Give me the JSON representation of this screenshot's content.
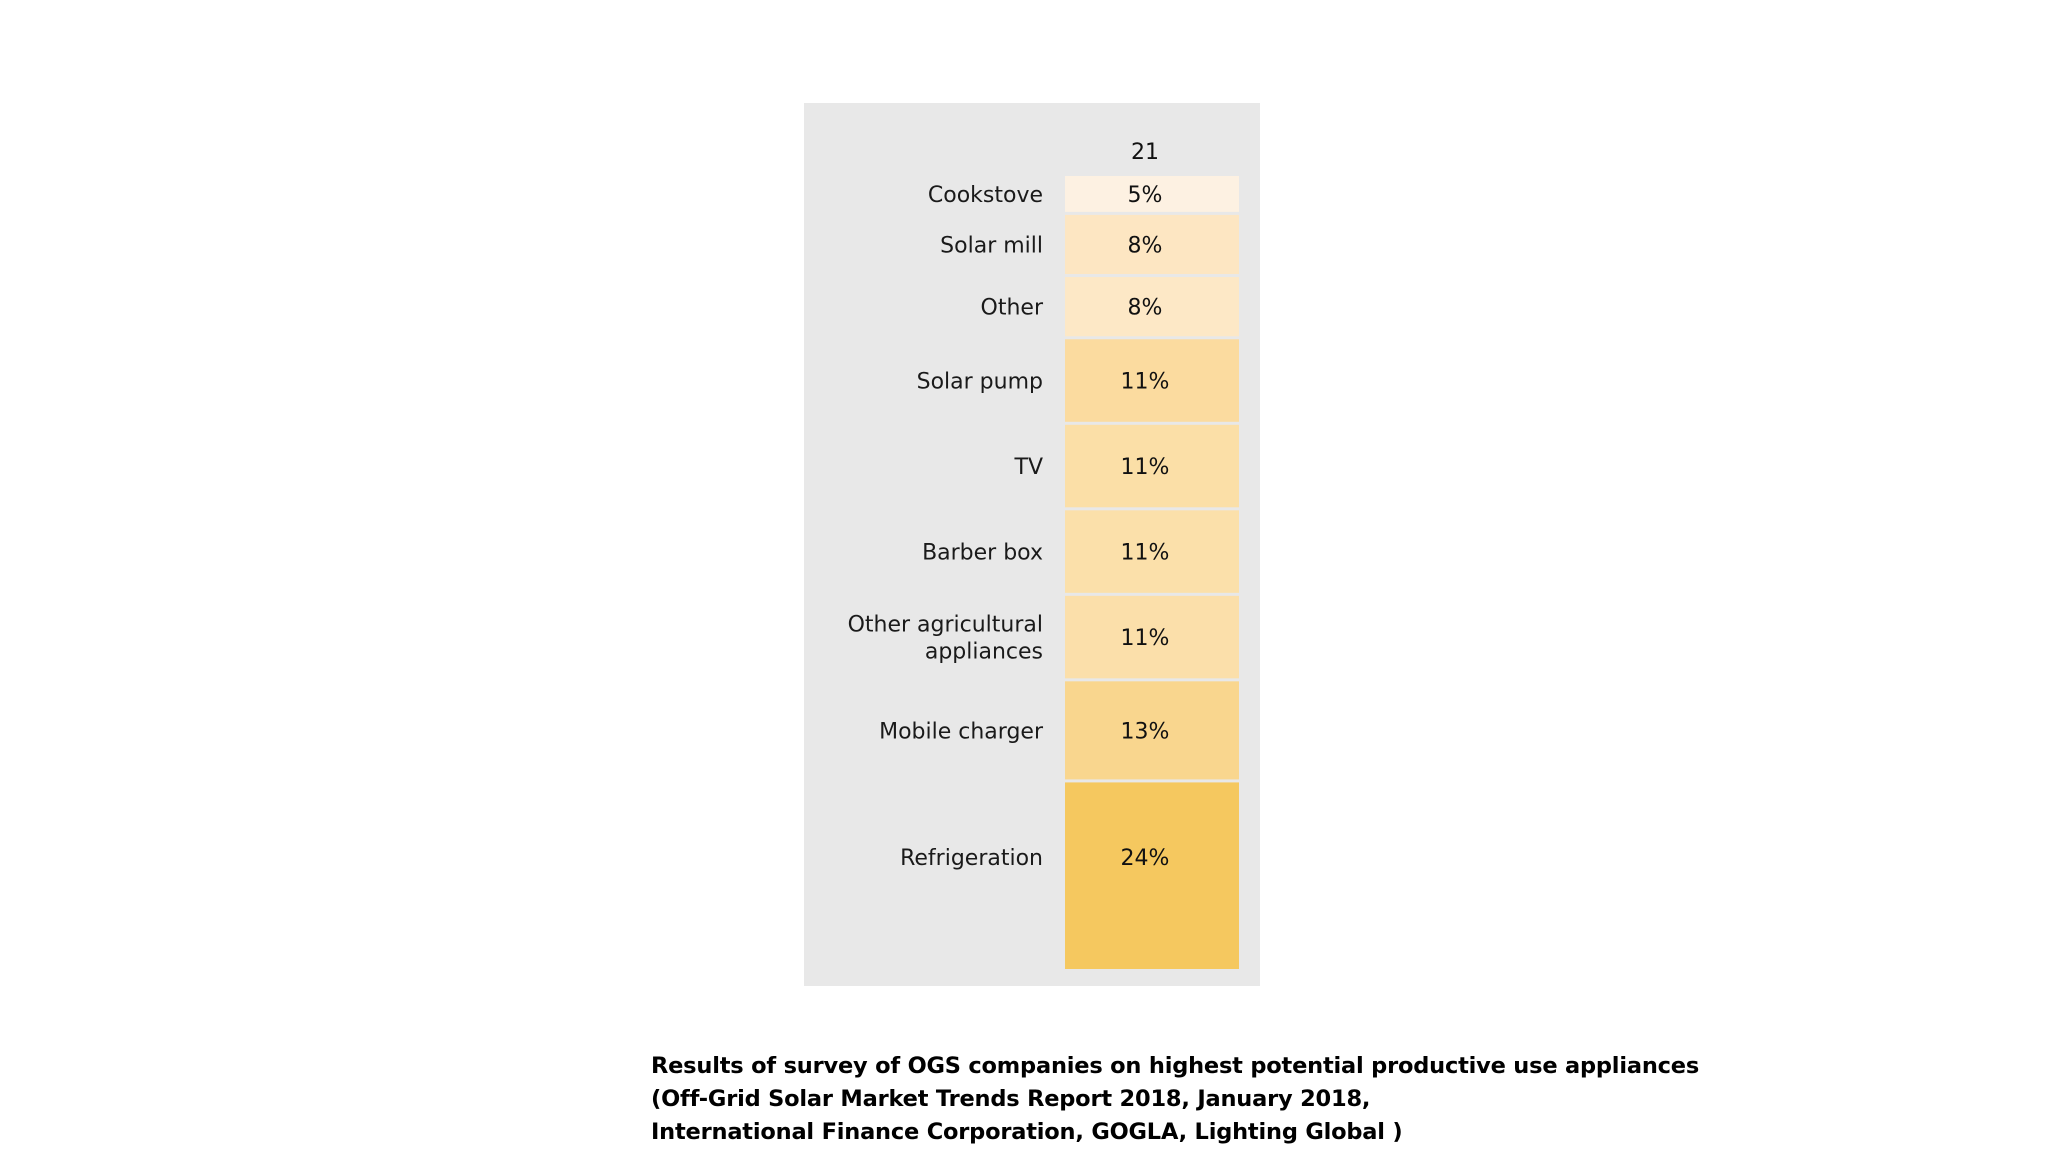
{
  "chart_data": {
    "type": "bar",
    "layout": "stacked-column",
    "total_label": "21",
    "categories": [
      "Cookstove",
      "Solar mill",
      "Other",
      "Solar pump",
      "TV",
      "Barber box",
      "Other agricultural appliances",
      "Mobile charger",
      "Refrigeration"
    ],
    "category_lines": [
      [
        "Cookstove"
      ],
      [
        "Solar mill"
      ],
      [
        "Other"
      ],
      [
        "Solar pump"
      ],
      [
        "TV"
      ],
      [
        "Barber box"
      ],
      [
        "Other agricultural",
        "appliances"
      ],
      [
        "Mobile charger"
      ],
      [
        "Refrigeration"
      ]
    ],
    "values": [
      5,
      8,
      8,
      11,
      11,
      11,
      11,
      13,
      24
    ],
    "data_labels": [
      "5%",
      "8%",
      "8%",
      "11%",
      "11%",
      "11%",
      "11%",
      "13%",
      "24%"
    ],
    "unit": "%",
    "colors": [
      "#fdf1e2",
      "#fde6c2",
      "#fde8c6",
      "#fbdb9f",
      "#fbdfa7",
      "#fbe0aa",
      "#fbdfaa",
      "#f9d68e",
      "#f5c85f"
    ],
    "panel_background": "#e8e8e8",
    "title": "",
    "xlabel": "",
    "ylabel": "",
    "legend": "none",
    "grid": false
  },
  "caption": {
    "lines": [
      "Results of survey of OGS companies on highest potential productive use appliances",
      "(Off-Grid Solar Market Trends Report 2018, January 2018,",
      "International Finance Corporation, GOGLA, Lighting Global  )"
    ]
  }
}
